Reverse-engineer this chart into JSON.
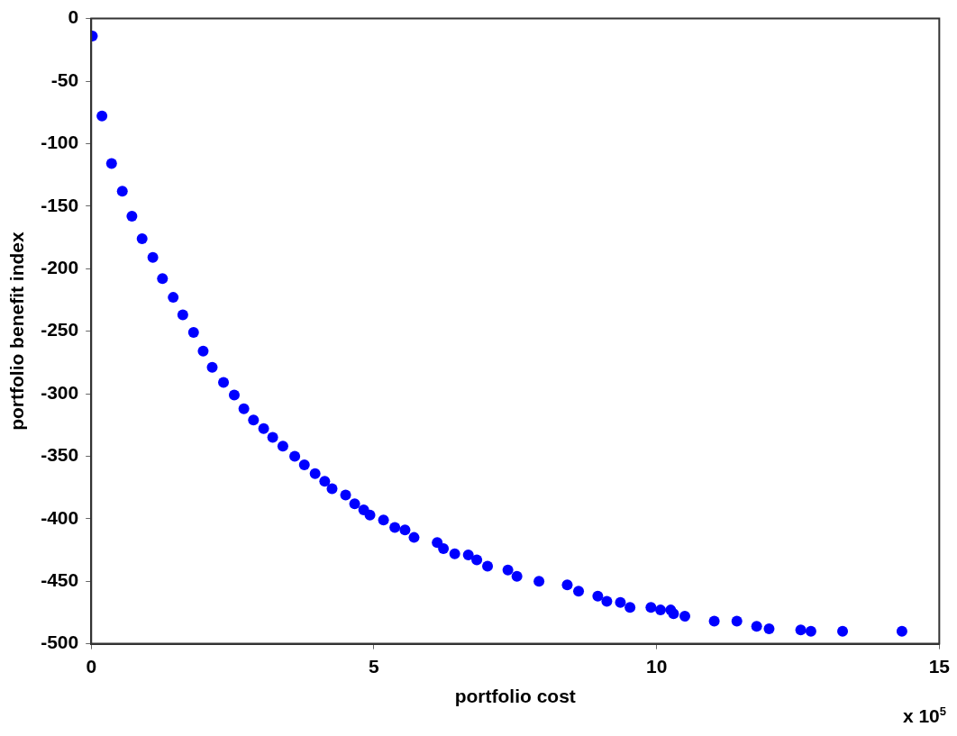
{
  "chart_data": {
    "type": "scatter",
    "xlabel": "portfolio cost",
    "ylabel": "portfolio benefit index",
    "annotations": [
      "x 10$^{5}$"
    ],
    "xlim": [
      0,
      15
    ],
    "xticks": [
      0,
      5,
      10,
      15
    ],
    "ylim": [
      -500,
      0
    ],
    "yticks": [
      -500,
      -450,
      -400,
      -350,
      -300,
      -250,
      -200,
      -150,
      -100,
      -50,
      0
    ],
    "grid": false,
    "legend": false,
    "marker": "circle",
    "series": [
      {
        "color": "#0000ff",
        "x": [
          0.02,
          0.19,
          0.36,
          0.55,
          0.72,
          0.9,
          1.09,
          1.26,
          1.45,
          1.62,
          1.81,
          1.98,
          2.14,
          2.34,
          2.53,
          2.7,
          2.87,
          3.05,
          3.21,
          3.39,
          3.6,
          3.77,
          3.96,
          4.13,
          4.26,
          4.5,
          4.66,
          4.82,
          4.93,
          5.17,
          5.37,
          5.55,
          5.71,
          6.12,
          6.23,
          6.43,
          6.67,
          6.82,
          7.01,
          7.37,
          7.53,
          7.92,
          8.42,
          8.62,
          8.96,
          9.12,
          9.36,
          9.53,
          9.9,
          10.07,
          10.25,
          10.3,
          10.5,
          11.02,
          11.42,
          11.77,
          11.99,
          12.55,
          12.73,
          13.29,
          14.34
        ],
        "values": [
          -14,
          -78,
          -116,
          -138,
          -158,
          -176,
          -191,
          -208,
          -223,
          -237,
          -251,
          -266,
          -279,
          -291,
          -301,
          -312,
          -321,
          -328,
          -335,
          -342,
          -350,
          -357,
          -364,
          -370,
          -376,
          -381,
          -388,
          -393,
          -397,
          -401,
          -407,
          -409,
          -415,
          -419,
          -424,
          -428,
          -429,
          -433,
          -438,
          -441,
          -446,
          -450,
          -453,
          -458,
          -462,
          -466,
          -467,
          -471,
          -471,
          -473,
          -473,
          -476,
          -478,
          -482,
          -482,
          -486,
          -488,
          -489,
          -490,
          -490,
          -490
        ]
      }
    ]
  }
}
